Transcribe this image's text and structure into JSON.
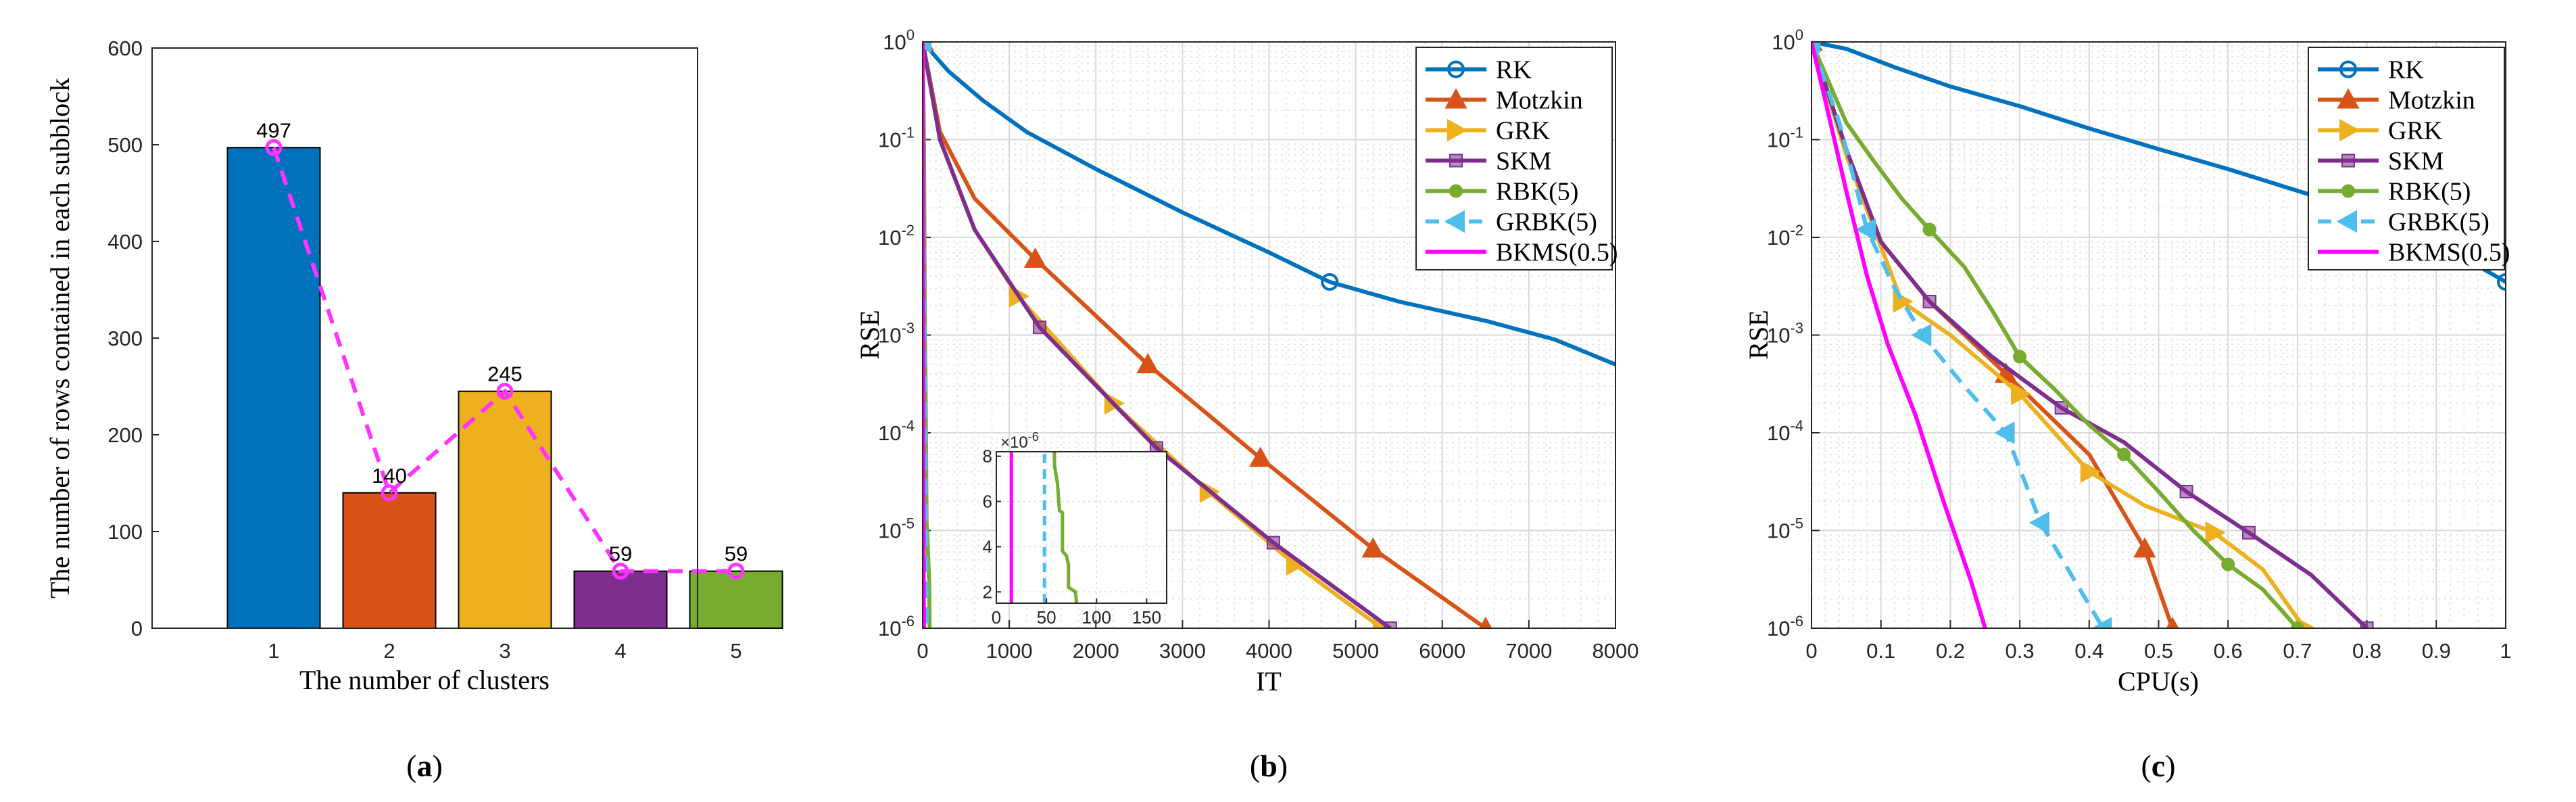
{
  "chart_data": [
    {
      "id": "a",
      "type": "bar",
      "panel_label": "(a)",
      "xlabel": "The number of clusters",
      "ylabel": "The number of rows contained in each subblock",
      "categories": [
        "1",
        "2",
        "3",
        "4",
        "5"
      ],
      "values": [
        497,
        140,
        245,
        59,
        59
      ],
      "data_labels": [
        "497",
        "140",
        "245",
        "59",
        "59"
      ],
      "bar_colors": [
        "#0072BD",
        "#D95319",
        "#EDB120",
        "#7E2F8E",
        "#77AC30"
      ],
      "overlay_line": {
        "style": "dashed",
        "color": "#FF33FF",
        "marker": "circle",
        "values": [
          497,
          140,
          245,
          59,
          59
        ]
      },
      "ylim": [
        0,
        600
      ],
      "yticks": [
        0,
        100,
        200,
        300,
        400,
        500,
        600
      ],
      "grid": false
    },
    {
      "id": "b",
      "type": "line",
      "panel_label": "(b)",
      "xlabel": "IT",
      "ylabel": "RSE",
      "yscale": "log",
      "xlim": [
        0,
        8000
      ],
      "ylim_exp": [
        -6,
        0
      ],
      "xticks": [
        0,
        1000,
        2000,
        3000,
        4000,
        5000,
        6000,
        7000,
        8000
      ],
      "grid": true,
      "legend_position": "top-right",
      "series": [
        {
          "name": "RK",
          "color": "#0072BD",
          "marker": "circle",
          "dash": false,
          "x": [
            0,
            300,
            700,
            1200,
            2000,
            3000,
            4000,
            4700,
            5500,
            6500,
            7300,
            8000
          ],
          "y": [
            1,
            0.5,
            0.25,
            0.12,
            0.05,
            0.018,
            0.007,
            0.0035,
            0.0022,
            0.0014,
            0.0009,
            0.0005
          ],
          "markers_x": [
            0,
            4700
          ]
        },
        {
          "name": "Motzkin",
          "color": "#D95319",
          "marker": "triangle-up",
          "dash": false,
          "x": [
            0,
            200,
            600,
            1300,
            2600,
            3900,
            5200,
            6500
          ],
          "y": [
            1,
            0.12,
            0.025,
            0.006,
            0.0005,
            5.5e-05,
            6.5e-06,
            1e-06
          ],
          "markers_x": [
            0,
            1300,
            2600,
            3900,
            5200,
            6500
          ]
        },
        {
          "name": "GRK",
          "color": "#EDB120",
          "marker": "triangle-right",
          "dash": false,
          "x": [
            0,
            200,
            600,
            1100,
            2200,
            3300,
            4300,
            5300
          ],
          "y": [
            1,
            0.1,
            0.012,
            0.0025,
            0.0002,
            2.5e-05,
            4.5e-06,
            1e-06
          ],
          "markers_x": [
            0,
            1100,
            2200,
            3300,
            4300,
            5300
          ]
        },
        {
          "name": "SKM",
          "color": "#7E2F8E",
          "marker": "square",
          "dash": false,
          "x": [
            0,
            200,
            600,
            1350,
            2700,
            4050,
            5400
          ],
          "y": [
            1,
            0.1,
            0.012,
            0.0012,
            7e-05,
            7.5e-06,
            1e-06
          ],
          "markers_x": [
            0,
            1350,
            2700,
            4050,
            5400
          ]
        },
        {
          "name": "RBK(5)",
          "color": "#77AC30",
          "marker": "circle-filled",
          "dash": false,
          "x": [
            0,
            15,
            25,
            35,
            45,
            55,
            65,
            75,
            80
          ],
          "y": [
            1,
            0.1,
            0.0015,
            0.0002,
            1.2e-05,
            8.2e-06,
            5e-06,
            3e-06,
            1e-06
          ],
          "markers_x": [
            0
          ]
        },
        {
          "name": "GRBK(5)",
          "color": "#4DBEEE",
          "marker": "triangle-left",
          "dash": true,
          "x": [
            0,
            10,
            20,
            30,
            40,
            48
          ],
          "y": [
            1,
            0.012,
            0.001,
            0.0001,
            1e-05,
            1e-06
          ],
          "markers_x": [
            0
          ]
        },
        {
          "name": "BKMS(0.5)",
          "color": "#FF00FF",
          "marker": "none",
          "dash": false,
          "x": [
            0,
            3,
            6,
            9,
            12,
            15
          ],
          "y": [
            1,
            0.02,
            0.0004,
            1e-05,
            5e-06,
            1e-06
          ],
          "markers_x": []
        }
      ],
      "inset": {
        "xlim": [
          0,
          170
        ],
        "ylim": [
          1.5,
          8.2
        ],
        "xticks": [
          0,
          50,
          100,
          150
        ],
        "yticks": [
          2,
          4,
          6,
          8
        ],
        "exponent_label": "×10",
        "exponent_value": "-6",
        "lines": [
          {
            "name": "BKMS(0.5)",
            "color": "#FF00FF",
            "dash": false,
            "x": [
              15,
              15
            ],
            "y": [
              1.5,
              8.2
            ]
          },
          {
            "name": "GRBK(5)",
            "color": "#4DBEEE",
            "dash": true,
            "x": [
              48,
              48
            ],
            "y": [
              1.5,
              8.2
            ]
          },
          {
            "name": "RBK(5)",
            "color": "#77AC30",
            "dash": false,
            "x": [
              58,
              58,
              61,
              63,
              66,
              66,
              70,
              72,
              72,
              79,
              80
            ],
            "y": [
              8.2,
              7.6,
              6.8,
              5.6,
              5.5,
              3.8,
              3.6,
              3.2,
              2.2,
              2.0,
              1.5
            ]
          }
        ]
      }
    },
    {
      "id": "c",
      "type": "line",
      "panel_label": "(c)",
      "xlabel": "CPU(s)",
      "ylabel": "RSE",
      "yscale": "log",
      "xlim": [
        0,
        1
      ],
      "ylim_exp": [
        -6,
        0
      ],
      "xticks": [
        0,
        0.1,
        0.2,
        0.3,
        0.4,
        0.5,
        0.6,
        0.7,
        0.8,
        0.9,
        1
      ],
      "xtick_labels": [
        "0",
        "0.1",
        "0.2",
        "0.3",
        "0.4",
        "0.5",
        "0.6",
        "0.7",
        "0.8",
        "0.9",
        "1"
      ],
      "grid": true,
      "legend_position": "top-right",
      "series": [
        {
          "name": "RK",
          "color": "#0072BD",
          "marker": "circle",
          "dash": false,
          "x": [
            0,
            0.05,
            0.12,
            0.2,
            0.3,
            0.4,
            0.5,
            0.6,
            0.7,
            0.8,
            0.9,
            1
          ],
          "y": [
            1,
            0.85,
            0.55,
            0.35,
            0.22,
            0.13,
            0.08,
            0.05,
            0.03,
            0.018,
            0.009,
            0.0035
          ],
          "markers_x": [
            0,
            1
          ]
        },
        {
          "name": "Motzkin",
          "color": "#D95319",
          "marker": "triangle-up",
          "dash": false,
          "x": [
            0,
            0.05,
            0.1,
            0.17,
            0.28,
            0.4,
            0.48,
            0.52
          ],
          "y": [
            1,
            0.08,
            0.009,
            0.0022,
            0.0004,
            6e-05,
            6.5e-06,
            1e-06
          ],
          "markers_x": [
            0,
            0.28,
            0.48,
            0.52
          ]
        },
        {
          "name": "GRK",
          "color": "#EDB120",
          "marker": "triangle-right",
          "dash": false,
          "x": [
            0,
            0.05,
            0.13,
            0.2,
            0.3,
            0.4,
            0.48,
            0.58,
            0.65,
            0.71
          ],
          "y": [
            1,
            0.07,
            0.0022,
            0.001,
            0.00025,
            4e-05,
            1.8e-05,
            9.5e-06,
            4e-06,
            1e-06
          ],
          "markers_x": [
            0,
            0.13,
            0.3,
            0.4,
            0.58,
            0.71
          ]
        },
        {
          "name": "SKM",
          "color": "#7E2F8E",
          "marker": "square",
          "dash": false,
          "x": [
            0,
            0.05,
            0.1,
            0.17,
            0.26,
            0.36,
            0.45,
            0.54,
            0.63,
            0.72,
            0.8
          ],
          "y": [
            1,
            0.08,
            0.009,
            0.0022,
            0.0006,
            0.00018,
            8e-05,
            2.5e-05,
            9.5e-06,
            3.5e-06,
            1e-06
          ],
          "markers_x": [
            0,
            0.17,
            0.36,
            0.54,
            0.63,
            0.8
          ]
        },
        {
          "name": "RBK(5)",
          "color": "#77AC30",
          "marker": "circle-filled",
          "dash": false,
          "x": [
            0,
            0.05,
            0.09,
            0.13,
            0.17,
            0.22,
            0.26,
            0.3,
            0.35,
            0.4,
            0.45,
            0.5,
            0.55,
            0.6,
            0.65,
            0.7
          ],
          "y": [
            1,
            0.15,
            0.06,
            0.025,
            0.012,
            0.005,
            0.0018,
            0.0006,
            0.00028,
            0.00012,
            6e-05,
            2.5e-05,
            1e-05,
            4.5e-06,
            2.5e-06,
            1e-06
          ],
          "markers_x": [
            0,
            0.17,
            0.3,
            0.45,
            0.6,
            0.7
          ]
        },
        {
          "name": "GRBK(5)",
          "color": "#4DBEEE",
          "marker": "triangle-left",
          "dash": true,
          "x": [
            0,
            0.04,
            0.08,
            0.12,
            0.16,
            0.22,
            0.28,
            0.33,
            0.38,
            0.42
          ],
          "y": [
            1,
            0.15,
            0.012,
            0.003,
            0.001,
            0.0003,
            0.0001,
            1.2e-05,
            3e-06,
            1e-06
          ],
          "markers_x": [
            0,
            0.08,
            0.16,
            0.28,
            0.33,
            0.42
          ]
        },
        {
          "name": "BKMS(0.5)",
          "color": "#FF00FF",
          "marker": "none",
          "dash": false,
          "x": [
            0,
            0.02,
            0.05,
            0.08,
            0.11,
            0.15,
            0.19,
            0.23,
            0.25
          ],
          "y": [
            1,
            0.25,
            0.03,
            0.004,
            0.0008,
            0.00015,
            2e-05,
            3e-06,
            1e-06
          ],
          "markers_x": []
        }
      ]
    }
  ]
}
